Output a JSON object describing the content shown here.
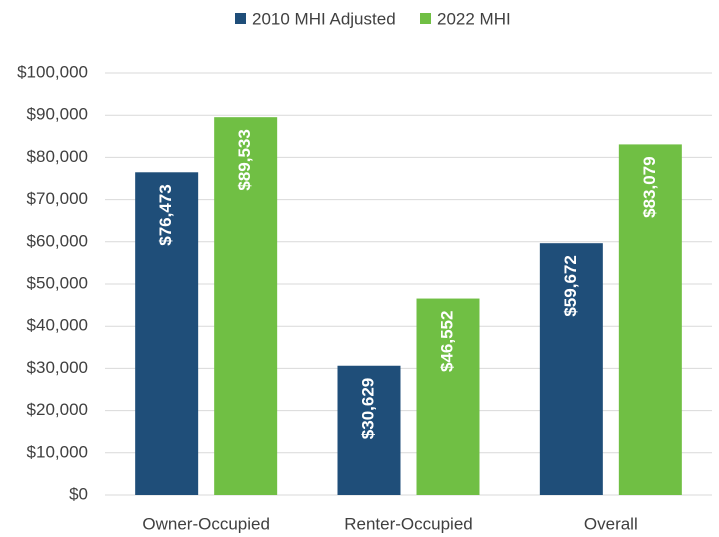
{
  "chart_data": {
    "type": "bar",
    "categories": [
      "Owner-Occupied",
      "Renter-Occupied",
      "Overall"
    ],
    "series": [
      {
        "name": "2010 MHI Adjusted",
        "color": "#1f4e79",
        "values": [
          76473,
          30629,
          59672
        ],
        "value_labels": [
          "$76,473",
          "$30,629",
          "$59,672"
        ]
      },
      {
        "name": "2022 MHI",
        "color": "#70bf44",
        "values": [
          89533,
          46552,
          83079
        ],
        "value_labels": [
          "$89,533",
          "$46,552",
          "$83,079"
        ]
      }
    ],
    "ylim": [
      0,
      100000
    ],
    "yticks": [
      {
        "value": 0,
        "label": "$0"
      },
      {
        "value": 10000,
        "label": "$10,000"
      },
      {
        "value": 20000,
        "label": "$20,000"
      },
      {
        "value": 30000,
        "label": "$30,000"
      },
      {
        "value": 40000,
        "label": "$40,000"
      },
      {
        "value": 50000,
        "label": "$50,000"
      },
      {
        "value": 60000,
        "label": "$60,000"
      },
      {
        "value": 70000,
        "label": "$70,000"
      },
      {
        "value": 80000,
        "label": "$80,000"
      },
      {
        "value": 90000,
        "label": "$90,000"
      },
      {
        "value": 100000,
        "label": "$100,000"
      }
    ],
    "grid": true,
    "legend": "top"
  }
}
